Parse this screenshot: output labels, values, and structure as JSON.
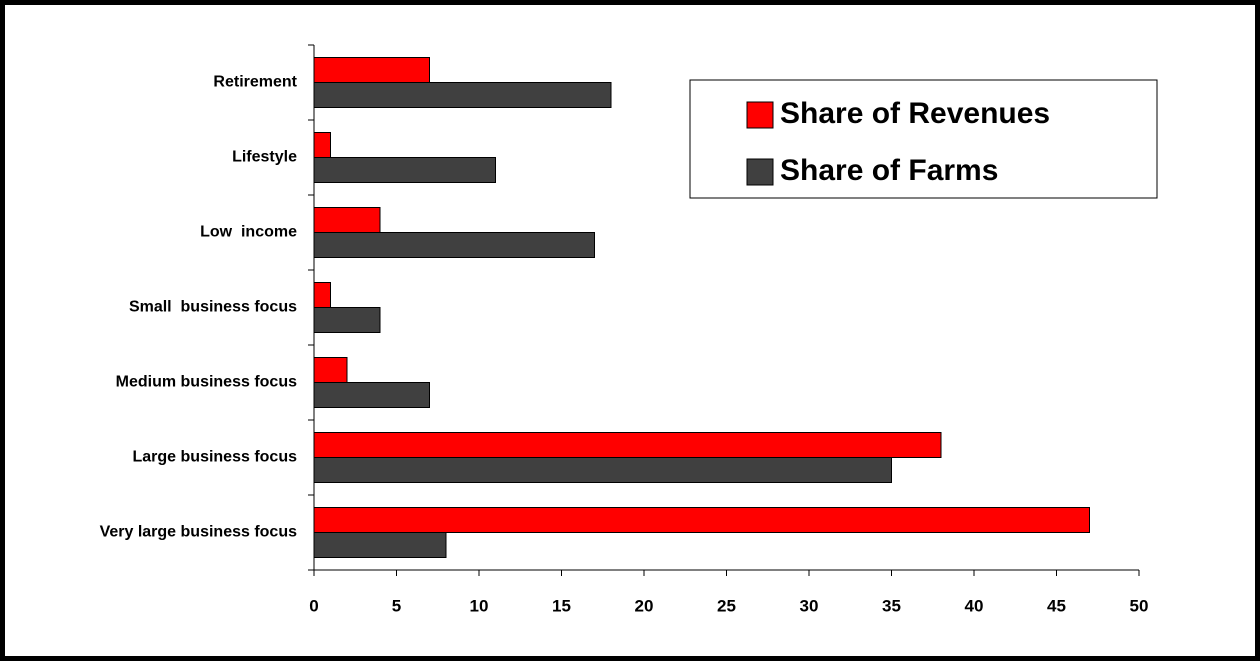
{
  "chart_data": {
    "type": "hbar",
    "categories": [
      "Retirement",
      "Lifestyle",
      "Low  income",
      "Small  business focus",
      "Medium business focus",
      "Large business focus",
      "Very large business focus"
    ],
    "series": [
      {
        "name": "Share of Revenues",
        "color": "#ff0000",
        "values": [
          7,
          1,
          4,
          1,
          2,
          38,
          47
        ]
      },
      {
        "name": "Share of Farms",
        "color": "#404040",
        "values": [
          18,
          11,
          17,
          4,
          7,
          35,
          8
        ]
      }
    ],
    "xlim": [
      0,
      50
    ],
    "xticks": [
      0,
      5,
      10,
      15,
      20,
      25,
      30,
      35,
      40,
      45,
      50
    ],
    "grid": false,
    "legend": "top-right"
  }
}
